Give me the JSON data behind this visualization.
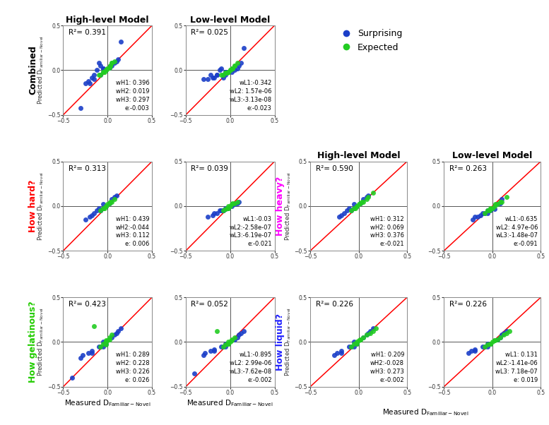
{
  "panels": {
    "combined_high": {
      "r2": "0.391",
      "annotation": "wH1: 0.396\nwH2: 0.019\nwH3: 0.297\ne:-0.003",
      "blue_x": [
        -0.08,
        -0.05,
        -0.12,
        -0.15,
        -0.18,
        -0.22,
        -0.25,
        -0.1,
        -0.05,
        0.02,
        0.05,
        0.08,
        0.1,
        0.12,
        -0.02,
        -0.08,
        -0.15,
        -0.2,
        -0.05,
        0.15,
        -0.3
      ],
      "blue_y": [
        0.05,
        0.02,
        0.0,
        -0.05,
        -0.08,
        -0.12,
        -0.15,
        0.08,
        -0.02,
        0.03,
        0.05,
        0.08,
        0.1,
        0.12,
        0.0,
        -0.05,
        -0.1,
        -0.15,
        0.02,
        0.32,
        -0.42
      ],
      "green_x": [
        -0.05,
        -0.02,
        0.0,
        0.03,
        0.05,
        -0.08,
        -0.05,
        0.02,
        -0.02,
        0.05,
        -0.1,
        0.08,
        -0.03,
        0.0,
        0.03
      ],
      "green_y": [
        -0.02,
        0.0,
        0.02,
        0.05,
        0.08,
        -0.05,
        -0.02,
        0.03,
        0.0,
        0.08,
        -0.05,
        0.1,
        -0.02,
        0.02,
        0.05
      ]
    },
    "combined_low": {
      "r2": "0.025",
      "annotation": "wL1:-0.342\nwL2: 1.57e-06\nwL3:-3.13e-08\ne:-0.023",
      "blue_x": [
        -0.08,
        -0.05,
        -0.12,
        -0.15,
        -0.18,
        -0.22,
        -0.25,
        -0.1,
        -0.05,
        0.02,
        0.05,
        0.08,
        0.1,
        0.12,
        -0.02,
        -0.08,
        -0.15,
        -0.2,
        -0.05,
        0.15,
        -0.3
      ],
      "blue_y": [
        -0.05,
        -0.02,
        0.0,
        -0.05,
        -0.08,
        -0.05,
        -0.1,
        0.02,
        -0.05,
        -0.02,
        0.0,
        0.02,
        0.05,
        0.08,
        -0.02,
        -0.08,
        -0.05,
        -0.08,
        -0.02,
        0.25,
        -0.1
      ],
      "green_x": [
        -0.05,
        -0.02,
        0.0,
        0.03,
        0.05,
        -0.08,
        -0.05,
        0.02,
        -0.02,
        0.05,
        -0.1,
        0.08,
        -0.03,
        0.0,
        0.03
      ],
      "green_y": [
        -0.03,
        -0.02,
        0.0,
        0.02,
        0.05,
        -0.05,
        -0.03,
        0.02,
        -0.02,
        0.05,
        -0.05,
        0.08,
        -0.03,
        0.0,
        0.02
      ]
    },
    "hard_high": {
      "r2": "0.313",
      "annotation": "wH1: 0.439\nwH2:-0.044\nwH3: 0.112\ne: 0.006",
      "blue_x": [
        -0.05,
        -0.1,
        -0.15,
        -0.2,
        -0.25,
        -0.08,
        0.05,
        0.1,
        -0.02,
        -0.05,
        -0.12,
        0.02,
        -0.18,
        -0.08,
        0.08
      ],
      "blue_y": [
        0.02,
        -0.02,
        -0.08,
        -0.12,
        -0.15,
        -0.05,
        0.08,
        0.12,
        0.0,
        -0.02,
        -0.05,
        0.03,
        -0.1,
        -0.05,
        0.1
      ],
      "green_x": [
        -0.02,
        0.0,
        0.02,
        0.05,
        -0.05,
        0.08,
        -0.08,
        -0.03,
        0.03,
        -0.02
      ],
      "green_y": [
        0.0,
        0.02,
        0.03,
        0.05,
        -0.02,
        0.08,
        -0.05,
        -0.02,
        0.05,
        0.0
      ]
    },
    "hard_low": {
      "r2": "0.039",
      "annotation": "wL1:-0.03\nwL2:-2.58e-07\nwL3:-6.19e-07\ne:-0.021",
      "blue_x": [
        -0.05,
        -0.1,
        -0.15,
        -0.2,
        -0.25,
        -0.08,
        0.05,
        0.1,
        -0.02,
        -0.05,
        -0.12,
        0.02,
        -0.18,
        -0.08,
        0.08
      ],
      "blue_y": [
        -0.02,
        -0.05,
        -0.08,
        -0.1,
        -0.12,
        -0.05,
        0.02,
        0.05,
        -0.02,
        -0.03,
        -0.05,
        0.0,
        -0.08,
        -0.05,
        0.03
      ],
      "green_x": [
        -0.02,
        0.0,
        0.02,
        0.05,
        -0.05,
        0.08,
        -0.08,
        -0.03,
        0.03,
        -0.02
      ],
      "green_y": [
        -0.02,
        0.0,
        0.02,
        0.03,
        -0.03,
        0.05,
        -0.05,
        -0.02,
        0.03,
        0.0
      ]
    },
    "gelat_high": {
      "r2": "0.423",
      "annotation": "wH1: 0.289\nwH2: 0.228\nwH3: 0.226\ne: 0.026",
      "blue_x": [
        -0.05,
        -0.1,
        -0.18,
        -0.22,
        -0.28,
        -0.08,
        0.05,
        0.1,
        0.15,
        -0.02,
        -0.05,
        -0.3,
        0.08,
        -0.18,
        0.12,
        -0.4
      ],
      "blue_y": [
        0.0,
        -0.05,
        -0.1,
        -0.12,
        -0.15,
        -0.05,
        0.05,
        0.1,
        0.15,
        -0.02,
        -0.05,
        -0.18,
        0.08,
        -0.12,
        0.12,
        -0.4
      ],
      "green_x": [
        -0.02,
        0.0,
        0.02,
        -0.05,
        -0.08,
        0.05,
        -0.02,
        0.02,
        -0.02,
        -0.15
      ],
      "green_y": [
        0.0,
        0.02,
        0.03,
        -0.02,
        -0.05,
        0.08,
        -0.03,
        0.05,
        0.02,
        0.18
      ]
    },
    "gelat_low": {
      "r2": "0.052",
      "annotation": "wL1:-0.895\nwL2: 2.99e-06\nwL3:-7.62e-08\ne:-0.002",
      "blue_x": [
        -0.05,
        -0.1,
        -0.18,
        -0.22,
        -0.28,
        -0.08,
        0.05,
        0.1,
        0.15,
        -0.02,
        -0.05,
        -0.3,
        0.08,
        -0.18,
        0.12,
        -0.4
      ],
      "blue_y": [
        -0.02,
        -0.05,
        -0.08,
        -0.1,
        -0.12,
        -0.05,
        0.03,
        0.08,
        0.12,
        -0.02,
        -0.05,
        -0.15,
        0.05,
        -0.1,
        0.1,
        -0.35
      ],
      "green_x": [
        -0.02,
        0.0,
        0.02,
        -0.05,
        -0.08,
        0.05,
        -0.02,
        0.02,
        -0.02,
        -0.15
      ],
      "green_y": [
        -0.02,
        0.0,
        0.02,
        -0.03,
        -0.05,
        0.05,
        -0.02,
        0.03,
        0.0,
        0.12
      ]
    },
    "heavy_high": {
      "r2": "0.590",
      "annotation": "wH1: 0.312\nwH2: 0.069\nwH3: 0.376\ne:-0.021",
      "blue_x": [
        -0.05,
        -0.1,
        -0.15,
        -0.2,
        -0.08,
        0.05,
        0.1,
        -0.02,
        -0.05,
        -0.12,
        0.02,
        -0.18,
        0.08
      ],
      "blue_y": [
        0.02,
        -0.02,
        -0.08,
        -0.12,
        -0.05,
        0.08,
        0.12,
        0.0,
        -0.02,
        -0.05,
        0.03,
        -0.1,
        0.1
      ],
      "green_x": [
        -0.02,
        0.0,
        0.02,
        0.05,
        -0.05,
        0.08,
        -0.08,
        -0.03,
        0.03,
        -0.02,
        0.1,
        0.15
      ],
      "green_y": [
        0.0,
        0.02,
        0.03,
        0.05,
        -0.02,
        0.08,
        -0.05,
        -0.02,
        0.05,
        0.0,
        0.1,
        0.15
      ]
    },
    "heavy_low": {
      "r2": "0.263",
      "annotation": "wL1:-0.635\nwL2: 4.97e-06\nwL3:-1.48e-07\ne:-0.091",
      "blue_x": [
        -0.05,
        -0.1,
        -0.15,
        -0.2,
        -0.08,
        0.05,
        0.1,
        -0.02,
        -0.05,
        -0.12,
        0.02,
        -0.18,
        0.08
      ],
      "blue_y": [
        -0.05,
        -0.08,
        -0.12,
        -0.15,
        -0.08,
        0.02,
        0.08,
        -0.05,
        -0.08,
        -0.1,
        -0.03,
        -0.12,
        0.03
      ],
      "green_x": [
        -0.02,
        0.0,
        0.02,
        0.05,
        -0.05,
        0.08,
        -0.08,
        -0.03,
        0.03,
        -0.02,
        0.1,
        0.15
      ],
      "green_y": [
        -0.03,
        -0.02,
        0.0,
        0.02,
        -0.05,
        0.05,
        -0.08,
        -0.05,
        0.02,
        -0.02,
        0.05,
        0.1
      ]
    },
    "liquid_high": {
      "r2": "0.226",
      "annotation": "wH1: 0.209\nwH2:-0.028\nwH3: 0.273\ne:-0.002",
      "blue_x": [
        -0.05,
        -0.1,
        -0.18,
        -0.22,
        -0.08,
        0.05,
        0.1,
        0.15,
        -0.02,
        -0.05,
        -0.25,
        0.08,
        -0.18,
        0.12
      ],
      "blue_y": [
        0.0,
        -0.05,
        -0.1,
        -0.12,
        -0.05,
        0.05,
        0.1,
        0.15,
        -0.02,
        -0.05,
        -0.15,
        0.08,
        -0.12,
        0.12
      ],
      "green_x": [
        -0.02,
        0.0,
        0.02,
        -0.05,
        -0.08,
        0.05,
        -0.02,
        0.02,
        0.08,
        0.12,
        0.15,
        0.18
      ],
      "green_y": [
        0.0,
        0.02,
        0.03,
        -0.02,
        -0.05,
        0.05,
        -0.02,
        0.03,
        0.08,
        0.1,
        0.12,
        0.15
      ]
    },
    "liquid_low": {
      "r2": "0.226",
      "annotation": "wL1: 0.131\nwL2:-1.41e-06\nwL3: 7.18e-07\ne: 0.019",
      "blue_x": [
        -0.05,
        -0.1,
        -0.18,
        -0.22,
        -0.08,
        0.05,
        0.1,
        0.15,
        -0.02,
        -0.05,
        -0.25,
        0.08,
        -0.18,
        0.12
      ],
      "blue_y": [
        -0.02,
        -0.05,
        -0.08,
        -0.1,
        -0.05,
        0.03,
        0.08,
        0.12,
        -0.02,
        -0.05,
        -0.12,
        0.05,
        -0.1,
        0.1
      ],
      "green_x": [
        -0.02,
        0.0,
        0.02,
        -0.05,
        -0.08,
        0.05,
        -0.02,
        0.02,
        0.08,
        0.12,
        0.15,
        0.18
      ],
      "green_y": [
        -0.02,
        0.0,
        0.02,
        -0.03,
        -0.05,
        0.03,
        -0.02,
        0.02,
        0.05,
        0.08,
        0.1,
        0.12
      ]
    }
  },
  "blue_color": "#1a3ec8",
  "green_color": "#22cc22",
  "col_titles_left": [
    "High-level Model",
    "Low-level Model"
  ],
  "col_titles_right": [
    "High-level Model",
    "Low-level Model"
  ],
  "row_labels_left": [
    "Combined",
    "How hard?",
    "How gelatinous?"
  ],
  "row_labels_right": [
    "How heavy?",
    "How liquid?"
  ],
  "row_label_colors_left": [
    "black",
    "red",
    "#22cc00"
  ],
  "row_label_colors_right": [
    "magenta",
    "#2222ff"
  ],
  "legend_labels": [
    "Surprising",
    "Expected"
  ],
  "legend_colors": [
    "#1a3ec8",
    "#22cc22"
  ],
  "dot_size": 25,
  "dot_alpha": 0.9
}
